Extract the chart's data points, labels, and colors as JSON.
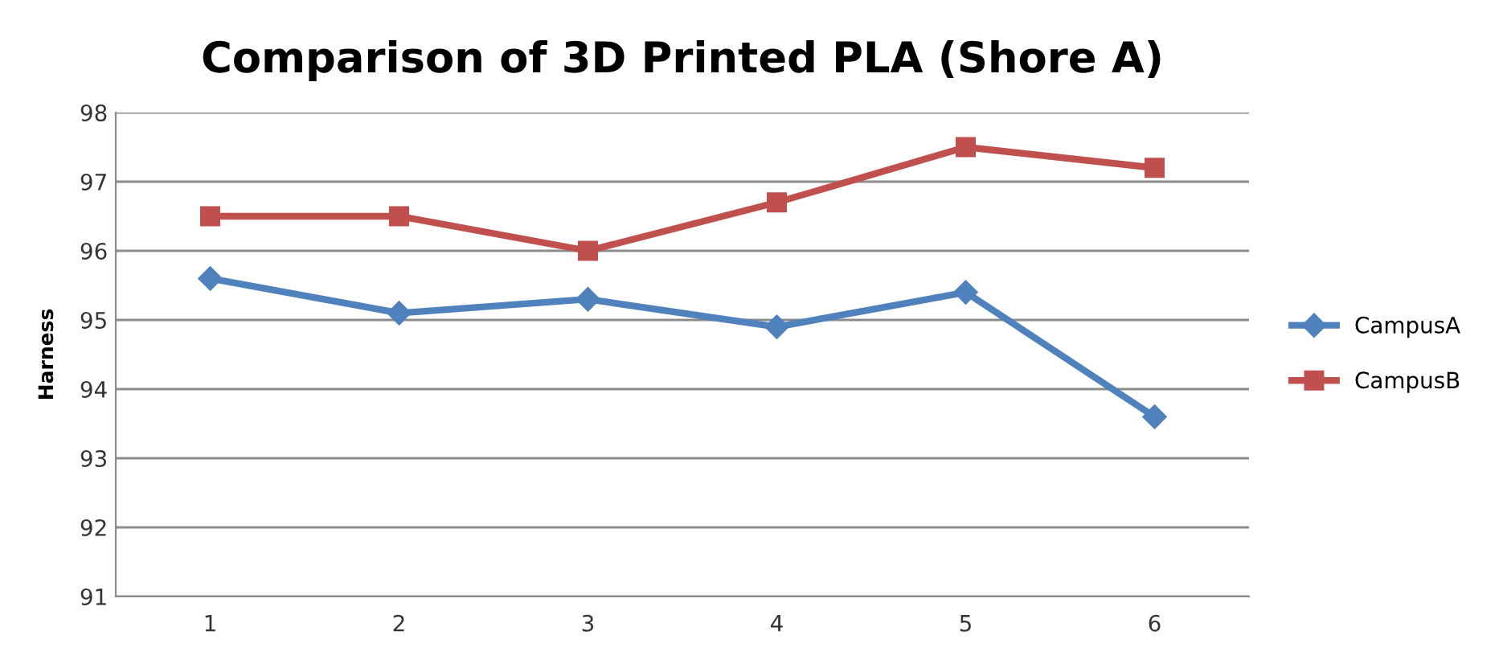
{
  "chart_data": {
    "type": "line",
    "title": "Comparison of 3D Printed PLA (Shore A)",
    "ylabel": "Harness",
    "categories": [
      "1",
      "2",
      "3",
      "4",
      "5",
      "6"
    ],
    "series": [
      {
        "name": "CampusA",
        "color": "#4f81bd",
        "marker": "diamond",
        "values": [
          95.6,
          95.1,
          95.3,
          94.9,
          95.4,
          93.6
        ]
      },
      {
        "name": "CampusB",
        "color": "#c0504d",
        "marker": "square",
        "values": [
          96.5,
          96.5,
          96.0,
          96.7,
          97.5,
          97.2
        ]
      }
    ],
    "ylim": [
      91,
      98
    ],
    "yticks": [
      91,
      92,
      93,
      94,
      95,
      96,
      97,
      98
    ],
    "grid": "y",
    "legend": "right",
    "line_style": "solid"
  }
}
